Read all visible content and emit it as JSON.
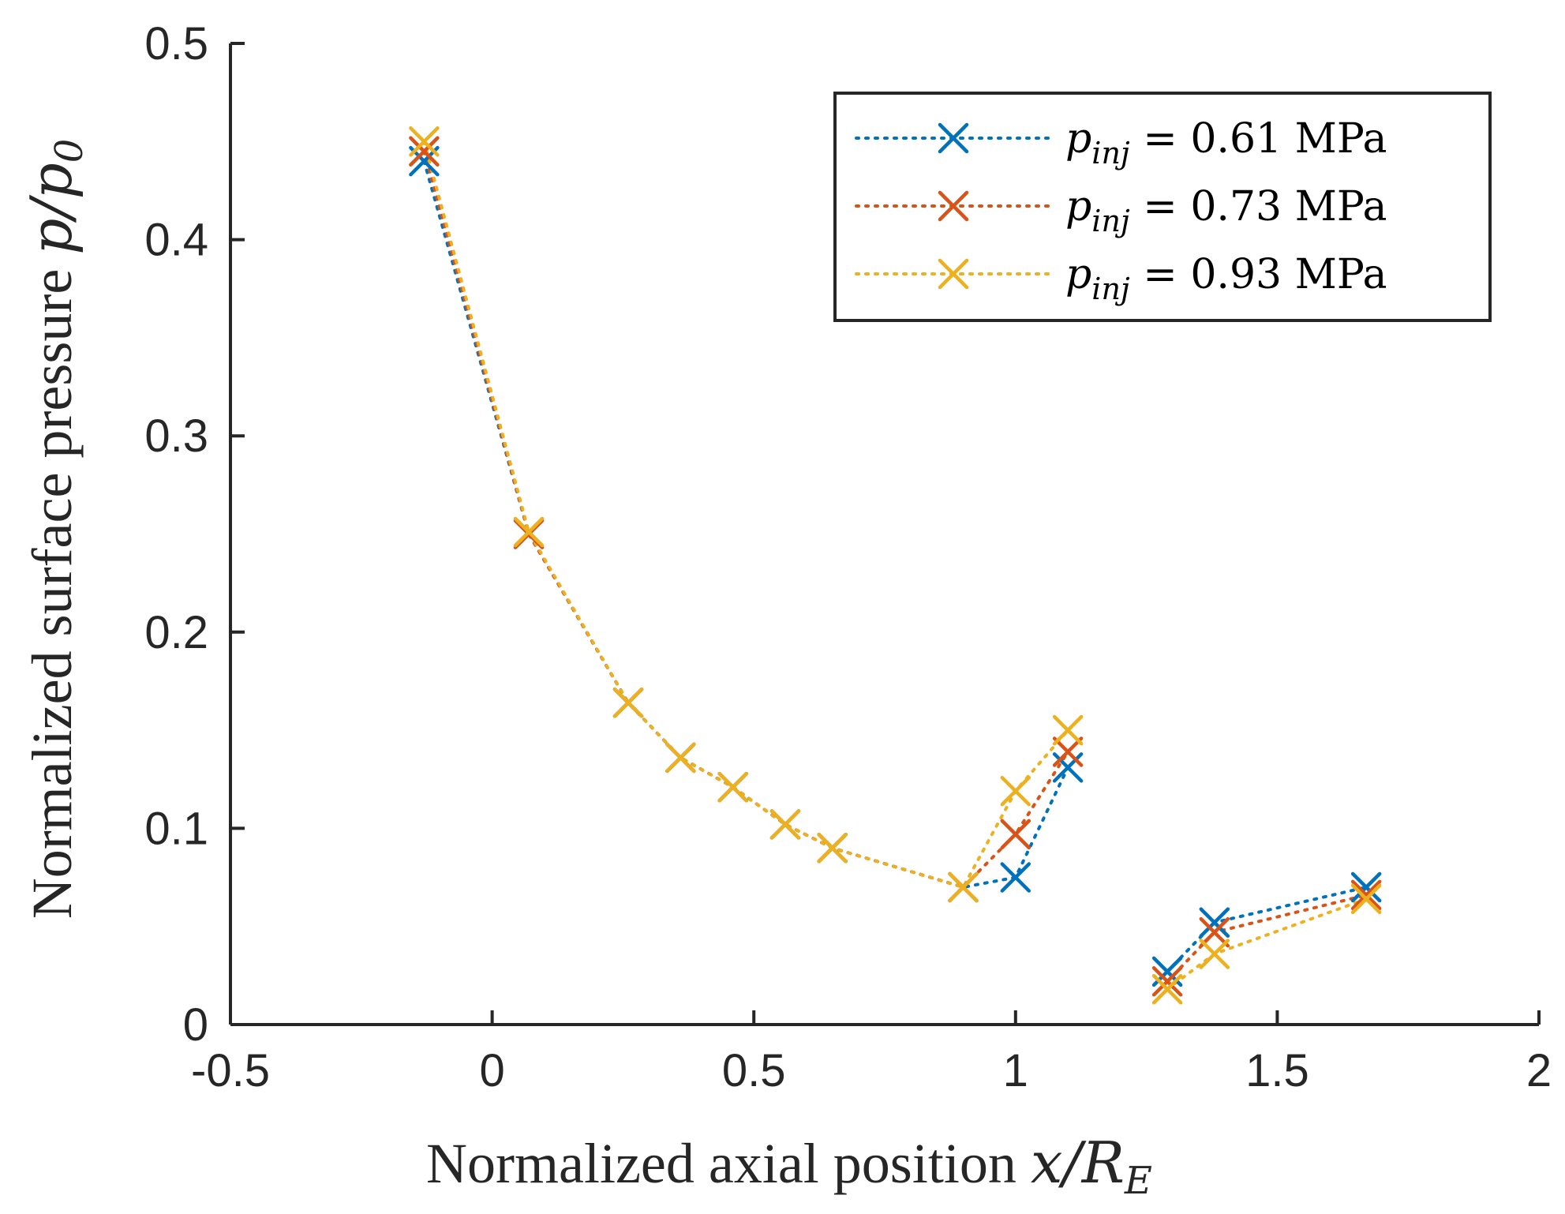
{
  "chart_data": {
    "type": "line",
    "title": "",
    "xlabel": {
      "text": "Normalized axial position ",
      "var": "x/R",
      "sub": "E"
    },
    "ylabel": {
      "text": "Normalized surface pressure ",
      "var": "p/p",
      "sub": "0"
    },
    "xlim": [
      -0.5,
      2
    ],
    "ylim": [
      0,
      0.5
    ],
    "xticks": [
      -0.5,
      0,
      0.5,
      1,
      1.5,
      2
    ],
    "xtick_labels": [
      "-0.5",
      "0",
      "0.5",
      "1",
      "1.5",
      "2"
    ],
    "yticks": [
      0,
      0.1,
      0.2,
      0.3,
      0.4,
      0.5
    ],
    "ytick_labels": [
      "0",
      "0.1",
      "0.2",
      "0.3",
      "0.4",
      "0.5"
    ],
    "legend_position": "top-right",
    "marker": "x",
    "line_style": "dotted",
    "series": [
      {
        "name": "p_inj = 0.61 MPa",
        "legend_var": "p",
        "legend_sub": "inj",
        "legend_rest": " = 0.61 MPa",
        "color": "#0072BD",
        "segments": [
          {
            "x": [
              -0.13,
              0.07,
              0.26,
              0.36,
              0.46,
              0.56,
              0.65,
              0.9,
              1.0,
              1.1
            ],
            "y": [
              0.44,
              0.25,
              0.164,
              0.136,
              0.121,
              0.102,
              0.09,
              0.07,
              0.075,
              0.131
            ]
          },
          {
            "x": [
              1.29,
              1.38,
              1.67
            ],
            "y": [
              0.027,
              0.052,
              0.07
            ]
          }
        ]
      },
      {
        "name": "p_inj = 0.73 MPa",
        "legend_var": "p",
        "legend_sub": "inj",
        "legend_rest": " = 0.73 MPa",
        "color": "#D95319",
        "segments": [
          {
            "x": [
              -0.13,
              0.07,
              0.26,
              0.36,
              0.46,
              0.56,
              0.65,
              0.9,
              1.0,
              1.1
            ],
            "y": [
              0.445,
              0.25,
              0.164,
              0.136,
              0.121,
              0.102,
              0.09,
              0.07,
              0.097,
              0.139
            ]
          },
          {
            "x": [
              1.29,
              1.38,
              1.67
            ],
            "y": [
              0.022,
              0.047,
              0.066
            ]
          }
        ]
      },
      {
        "name": "p_inj = 0.93 MPa",
        "legend_var": "p",
        "legend_sub": "inj",
        "legend_rest": " = 0.93 MPa",
        "color": "#EDB120",
        "segments": [
          {
            "x": [
              -0.13,
              0.07,
              0.26,
              0.36,
              0.46,
              0.56,
              0.65,
              0.9,
              1.0,
              1.1
            ],
            "y": [
              0.45,
              0.251,
              0.164,
              0.136,
              0.121,
              0.102,
              0.09,
              0.07,
              0.119,
              0.15
            ]
          },
          {
            "x": [
              1.29,
              1.38,
              1.67
            ],
            "y": [
              0.018,
              0.036,
              0.064
            ]
          }
        ]
      }
    ]
  }
}
